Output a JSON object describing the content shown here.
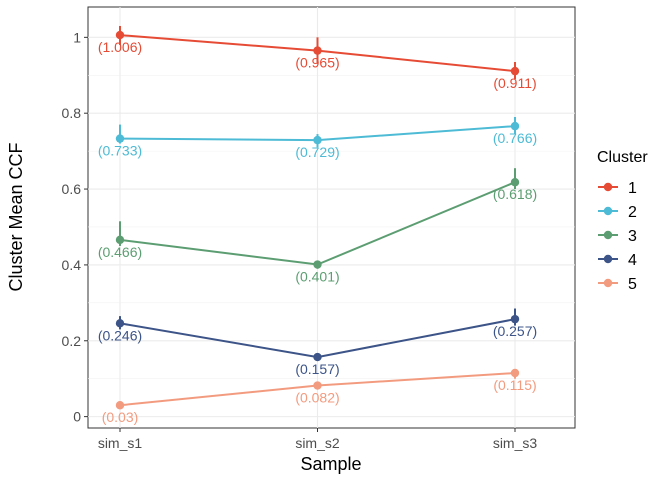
{
  "chart_data": {
    "type": "line",
    "title": "",
    "xlabel": "Sample",
    "ylabel": "Cluster Mean CCF",
    "categories": [
      "sim_s1",
      "sim_s2",
      "sim_s3"
    ],
    "ylim": [
      -0.03,
      1.08
    ],
    "yticks": [
      0,
      0.2,
      0.4,
      0.6,
      0.8,
      1
    ],
    "ytick_labels": [
      "0",
      "0.2",
      "0.4",
      "0.6",
      "0.8",
      "1"
    ],
    "grid": true,
    "legend": {
      "title": "Cluster",
      "position": "right"
    },
    "series": [
      {
        "name": "1",
        "color": "#E64B35",
        "values": [
          1.006,
          0.965,
          0.911
        ],
        "labels": [
          "(1.006)",
          "(0.965)",
          "(0.911)"
        ],
        "err_low": [
          0.98,
          0.93,
          0.89
        ],
        "err_high": [
          1.03,
          1.0,
          0.935
        ]
      },
      {
        "name": "2",
        "color": "#4DBBD5",
        "values": [
          0.733,
          0.729,
          0.766
        ],
        "labels": [
          "(0.733)",
          "(0.729)",
          "(0.766)"
        ],
        "err_low": [
          0.72,
          0.71,
          0.745
        ],
        "err_high": [
          0.77,
          0.745,
          0.79
        ]
      },
      {
        "name": "3",
        "color": "#5C9E72",
        "values": [
          0.466,
          0.401,
          0.618
        ],
        "labels": [
          "(0.466)",
          "(0.401)",
          "(0.618)"
        ],
        "err_low": [
          0.45,
          0.39,
          0.6
        ],
        "err_high": [
          0.515,
          0.41,
          0.655
        ]
      },
      {
        "name": "4",
        "color": "#3C5488",
        "values": [
          0.246,
          0.157,
          0.257
        ],
        "labels": [
          "(0.246)",
          "(0.157)",
          "(0.257)"
        ],
        "err_low": [
          0.23,
          0.15,
          0.24
        ],
        "err_high": [
          0.265,
          0.165,
          0.285
        ]
      },
      {
        "name": "5",
        "color": "#F39B7F",
        "values": [
          0.03,
          0.082,
          0.115
        ],
        "labels": [
          "(0.03)",
          "(0.082)",
          "(0.115)"
        ],
        "err_low": [
          0.02,
          0.075,
          0.1
        ],
        "err_high": [
          0.04,
          0.09,
          0.125
        ]
      }
    ]
  }
}
